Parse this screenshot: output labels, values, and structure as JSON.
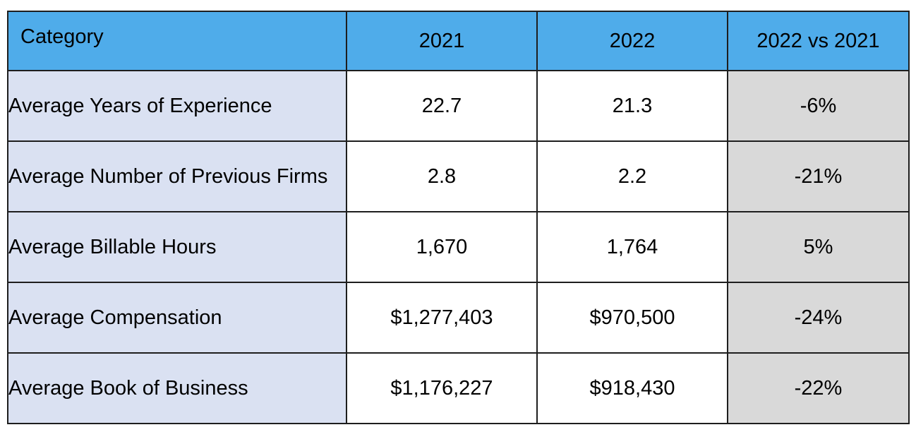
{
  "table": {
    "headers": [
      "Category",
      "2021",
      "2022",
      "2022 vs 2021"
    ],
    "rows": [
      [
        "Average Years of Experience",
        "22.7",
        "21.3",
        "-6%"
      ],
      [
        "Average Number of Previous Firms",
        "2.8",
        "2.2",
        "-21%"
      ],
      [
        "Average Billable Hours",
        "1,670",
        "1,764",
        "5%"
      ],
      [
        "Average Compensation",
        "$1,277,403",
        "$970,500",
        "-24%"
      ],
      [
        "Average Book of Business",
        "$1,176,227",
        "$918,430",
        "-22%"
      ]
    ]
  },
  "colors": {
    "header_bg": "#4facea",
    "category_bg": "#dae1f2",
    "change_bg": "#d9d9d9",
    "value_bg": "#ffffff",
    "border": "#1e1e1e"
  }
}
